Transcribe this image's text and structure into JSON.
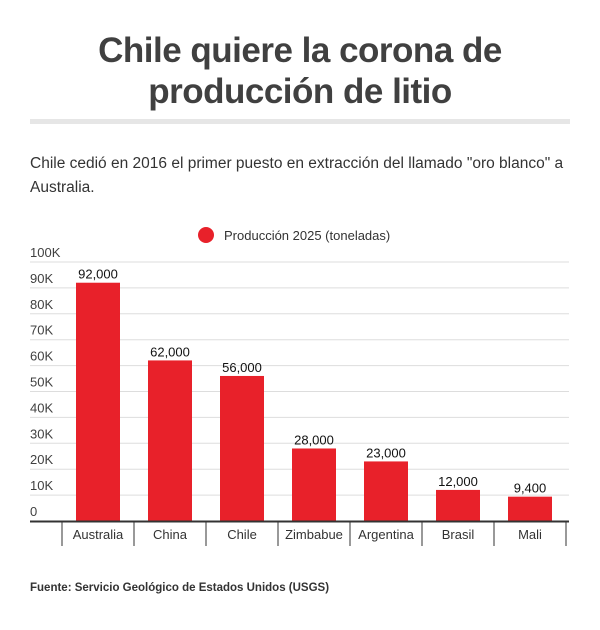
{
  "header": {
    "title_line1": "Chile quiere la corona de",
    "title_line2": "producción de litio",
    "subtitle": "Chile cedió en 2016 el primer puesto en extracción del llamado \"oro blanco\" a Australia."
  },
  "footer": {
    "source": "Fuente: Servicio Geológico de Estados Unidos (USGS)"
  },
  "colors": {
    "bar": "#e8212a",
    "grid": "#dddddd",
    "axis": "#333333"
  },
  "chart_data": {
    "type": "bar",
    "title": "Chile quiere la corona de producción de litio",
    "xlabel": "",
    "ylabel": "",
    "legend": {
      "position": "top",
      "entries": [
        "Producción 2025 (toneladas)"
      ]
    },
    "categories": [
      "Australia",
      "China",
      "Chile",
      "Zimbabue",
      "Argentina",
      "Brasil",
      "Mali"
    ],
    "series": [
      {
        "name": "Producción 2025 (toneladas)",
        "values": [
          92000,
          62000,
          56000,
          28000,
          23000,
          12000,
          9400
        ]
      }
    ],
    "data_labels": [
      "92,000",
      "62,000",
      "56,000",
      "28,000",
      "23,000",
      "12,000",
      "9,400"
    ],
    "ylim": [
      0,
      100000
    ],
    "yticks": [
      0,
      10000,
      20000,
      30000,
      40000,
      50000,
      60000,
      70000,
      80000,
      90000,
      100000
    ],
    "ytick_labels": [
      "0",
      "10K",
      "20K",
      "30K",
      "40K",
      "50K",
      "60K",
      "70K",
      "80K",
      "90K",
      "100K"
    ],
    "grid": true
  }
}
